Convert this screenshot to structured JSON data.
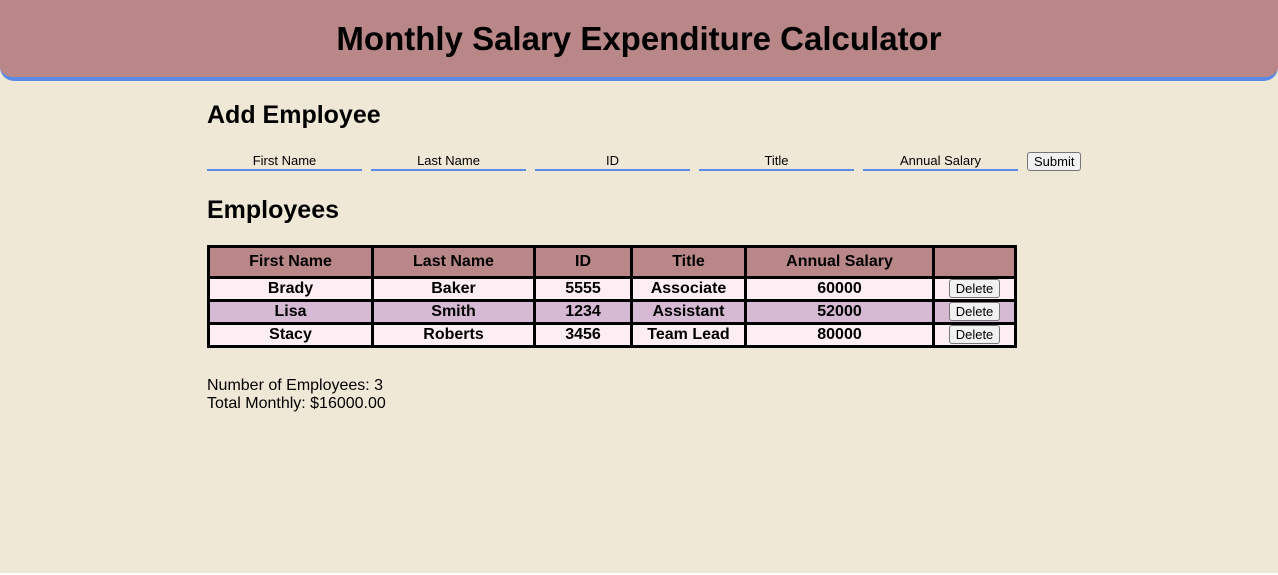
{
  "header": {
    "title": "Monthly Salary Expenditure Calculator"
  },
  "add_section": {
    "title": "Add Employee",
    "fields": [
      {
        "placeholder": "First Name"
      },
      {
        "placeholder": "Last Name"
      },
      {
        "placeholder": "ID"
      },
      {
        "placeholder": "Title"
      },
      {
        "placeholder": "Annual Salary"
      }
    ],
    "submit_label": "Submit"
  },
  "employees_section": {
    "title": "Employees",
    "columns": [
      "First Name",
      "Last Name",
      "ID",
      "Title",
      "Annual Salary",
      ""
    ],
    "rows": [
      {
        "first": "Brady",
        "last": "Baker",
        "id": "5555",
        "title": "Associate",
        "salary": "60000",
        "action": "Delete"
      },
      {
        "first": "Lisa",
        "last": "Smith",
        "id": "1234",
        "title": "Assistant",
        "salary": "52000",
        "action": "Delete"
      },
      {
        "first": "Stacy",
        "last": "Roberts",
        "id": "3456",
        "title": "Team Lead",
        "salary": "80000",
        "action": "Delete"
      }
    ]
  },
  "summary": {
    "employee_count": "Number of Employees: 3",
    "total_monthly": "Total Monthly: $16000.00"
  },
  "colors": {
    "background": "#f0e8d6",
    "header": "#b98787",
    "accent": "#5b8ae6",
    "row_light": "#fdeef4",
    "row_alt": "#d6b9d2"
  }
}
